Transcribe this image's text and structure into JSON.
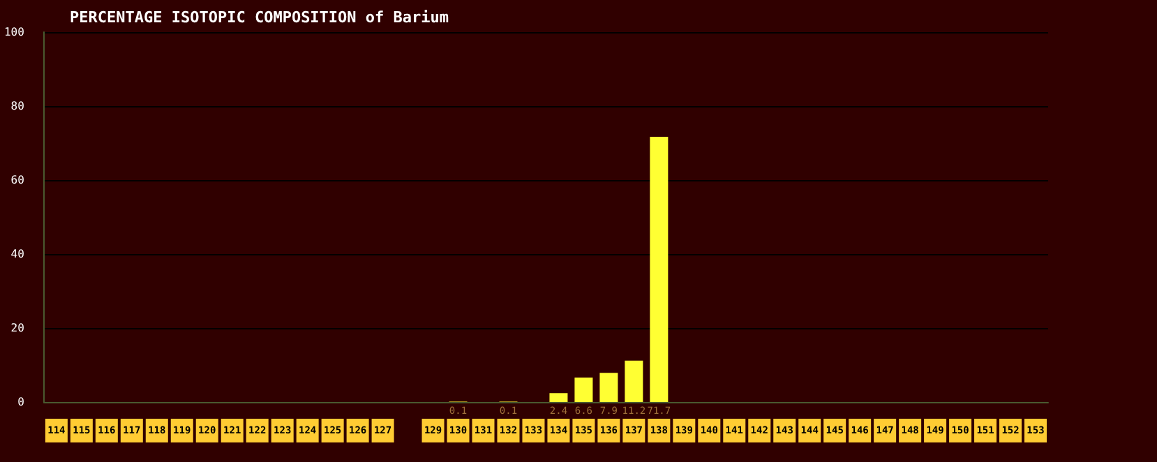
{
  "chart_data": {
    "type": "bar",
    "title": "PERCENTAGE ISOTOPIC COMPOSITION of Barium",
    "categories": [
      "114",
      "115",
      "116",
      "117",
      "118",
      "119",
      "120",
      "121",
      "122",
      "123",
      "124",
      "125",
      "126",
      "127",
      null,
      "129",
      "130",
      "131",
      "132",
      "133",
      "134",
      "135",
      "136",
      "137",
      "138",
      "139",
      "140",
      "141",
      "142",
      "143",
      "144",
      "145",
      "146",
      "147",
      "148",
      "149",
      "150",
      "151",
      "152",
      "153"
    ],
    "values": [
      null,
      null,
      null,
      null,
      null,
      null,
      null,
      null,
      null,
      null,
      null,
      null,
      null,
      null,
      null,
      null,
      0.1,
      null,
      0.1,
      null,
      2.4,
      6.6,
      7.9,
      11.2,
      71.7,
      null,
      null,
      null,
      null,
      null,
      null,
      null,
      null,
      null,
      null,
      null,
      null,
      null,
      null,
      null
    ],
    "data_labels": true,
    "color": "#ffff33",
    "ylim": [
      0,
      100
    ],
    "yticks": [
      0,
      20,
      40,
      60,
      80,
      100
    ],
    "grid": "y"
  }
}
